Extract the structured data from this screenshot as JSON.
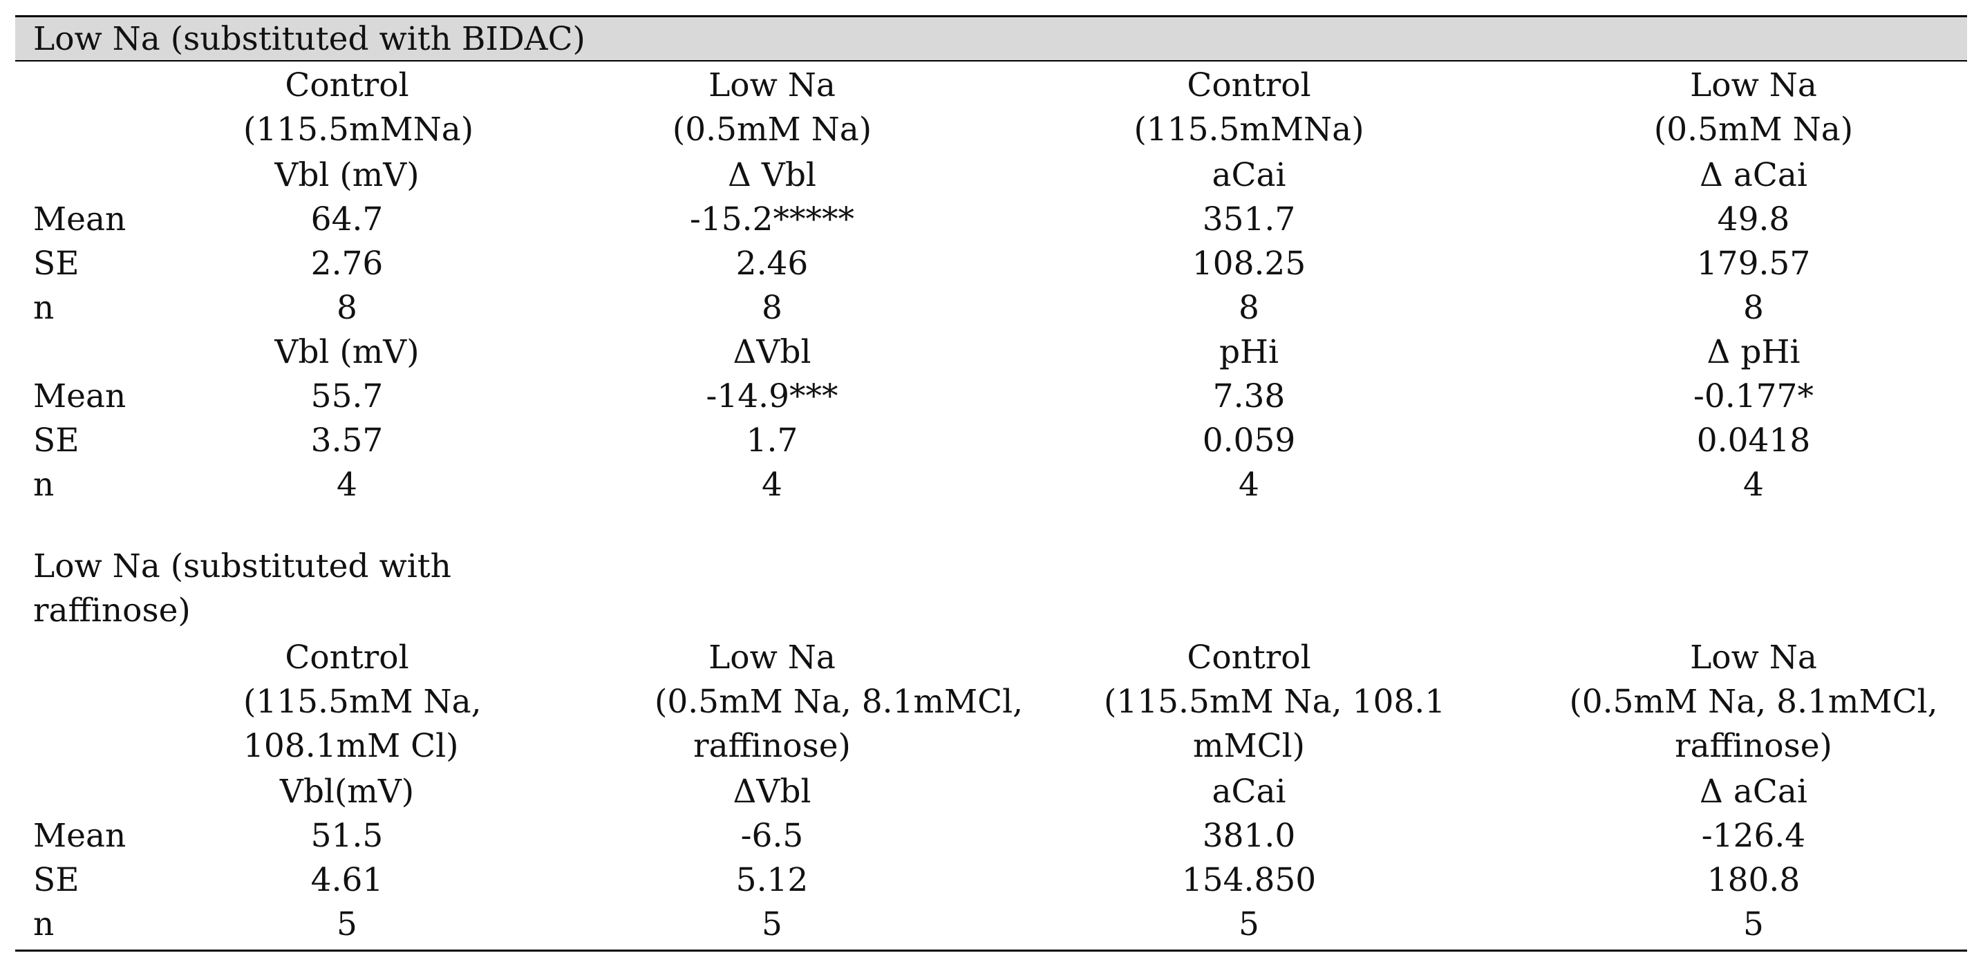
{
  "sections": [
    {
      "title": "Low Na (substituted with BIDAC)",
      "headers": {
        "col1": [
          "Control",
          "(115.5mMNa)"
        ],
        "col2": [
          "Low Na",
          "(0.5mM Na)"
        ],
        "col3": [
          "Control",
          "(115.5mMNa)"
        ],
        "col4": [
          "Low Na",
          "(0.5mM Na)"
        ]
      },
      "blocks": [
        {
          "subheaders": [
            "Vbl (mV)",
            "Δ Vbl",
            "aCai",
            "Δ aCai"
          ],
          "rows": [
            {
              "label": "Mean",
              "values": [
                "64.7",
                "-15.2*****",
                "351.7",
                "49.8"
              ]
            },
            {
              "label": "SE",
              "values": [
                "2.76",
                "2.46",
                "108.25",
                "179.57"
              ]
            },
            {
              "label": "n",
              "values": [
                "8",
                "8",
                "8",
                "8"
              ]
            }
          ]
        },
        {
          "subheaders": [
            "Vbl (mV)",
            "ΔVbl",
            "pHi",
            "Δ pHi"
          ],
          "rows": [
            {
              "label": "Mean",
              "values": [
                "55.7",
                "-14.9***",
                "7.38",
                "-0.177*"
              ]
            },
            {
              "label": "SE",
              "values": [
                "3.57",
                "1.7",
                "0.059",
                "0.0418"
              ]
            },
            {
              "label": "n",
              "values": [
                "4",
                "4",
                "4",
                "4"
              ]
            }
          ]
        }
      ]
    },
    {
      "title": "Low Na (substituted with raffinose)",
      "headers": {
        "col1": [
          "Control",
          "(115.5mM Na,",
          "108.1mM Cl)"
        ],
        "col2": [
          "Low Na",
          "(0.5mM Na, 8.1mMCl,",
          "raffinose)"
        ],
        "col3": [
          "Control",
          "(115.5mM Na, 108.1",
          "mMCl)"
        ],
        "col4": [
          "Low Na",
          "(0.5mM Na, 8.1mMCl,",
          "raffinose)"
        ]
      },
      "blocks": [
        {
          "subheaders": [
            "Vbl(mV)",
            "ΔVbl",
            "aCai",
            "Δ aCai"
          ],
          "rows": [
            {
              "label": "Mean",
              "values": [
                "51.5",
                "-6.5",
                "381.0",
                "-126.4"
              ]
            },
            {
              "label": "SE",
              "values": [
                "4.61",
                "5.12",
                "154.850",
                "180.8"
              ]
            },
            {
              "label": "n",
              "values": [
                "5",
                "5",
                "5",
                "5"
              ]
            }
          ]
        }
      ]
    }
  ]
}
